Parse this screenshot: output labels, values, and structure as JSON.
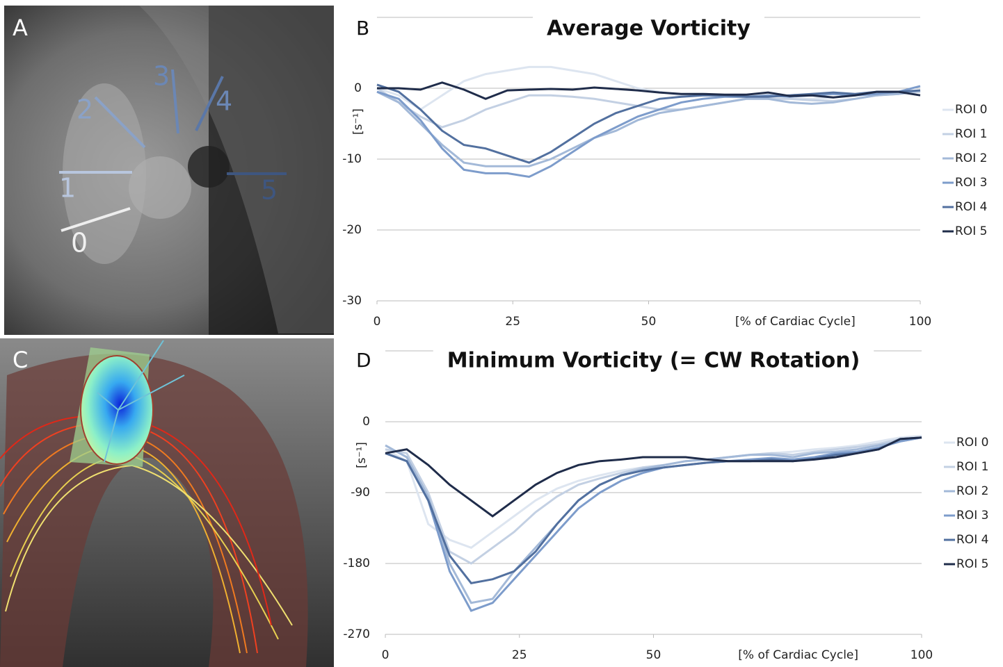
{
  "images": [
    {
      "label": "A",
      "roi_labels": [
        "0",
        "1",
        "2",
        "3",
        "4",
        "5"
      ]
    },
    {
      "label": "C"
    }
  ],
  "chart_data": [
    {
      "type": "line",
      "panel_label": "B",
      "title": "Average Vorticity",
      "y_label": "[s⁻¹]",
      "x_label": "[% of Cardiac Cycle]",
      "x": [
        0,
        4,
        8,
        12,
        16,
        20,
        24,
        28,
        32,
        36,
        40,
        44,
        48,
        52,
        56,
        60,
        64,
        68,
        72,
        76,
        80,
        84,
        88,
        92,
        96,
        100
      ],
      "xlim": [
        0,
        100
      ],
      "xticks": [
        0,
        25,
        50,
        100
      ],
      "ylim": [
        -30,
        10
      ],
      "yticks": [
        -30,
        -20,
        -10,
        0
      ],
      "grid": true,
      "series": [
        {
          "name": "ROI 0",
          "color": "#dde5f0",
          "values": [
            0,
            -1,
            -3,
            -1,
            1,
            2,
            2.5,
            3,
            3,
            2.5,
            2,
            1,
            0,
            -0.5,
            -1,
            -1,
            -1.2,
            -1.3,
            -1.5,
            -1.5,
            -1.5,
            -1.3,
            -1,
            -0.8,
            -0.5,
            -0.5
          ]
        },
        {
          "name": "ROI 1",
          "color": "#c3d0e3",
          "values": [
            0,
            -2,
            -4,
            -5.5,
            -4.5,
            -3,
            -2,
            -1,
            -1,
            -1.2,
            -1.5,
            -2,
            -2.5,
            -3,
            -3,
            -2.5,
            -2,
            -1.5,
            -1.5,
            -1.5,
            -1.7,
            -1.8,
            -1.5,
            -1,
            -0.8,
            -0.5
          ]
        },
        {
          "name": "ROI 2",
          "color": "#a3b9d8",
          "values": [
            -0.5,
            -2,
            -5,
            -8,
            -10.5,
            -11,
            -11,
            -11,
            -10,
            -8.5,
            -7,
            -6,
            -4.5,
            -3.5,
            -3,
            -2.5,
            -2,
            -1.5,
            -1.5,
            -2,
            -2.2,
            -2,
            -1.5,
            -1,
            -0.8,
            -0.3
          ]
        },
        {
          "name": "ROI 3",
          "color": "#7d9ccb",
          "values": [
            -0.5,
            -1.5,
            -4.5,
            -8.5,
            -11.5,
            -12,
            -12,
            -12.5,
            -11,
            -9,
            -7,
            -5.5,
            -4,
            -3,
            -2,
            -1.5,
            -1.2,
            -1.2,
            -1,
            -1.2,
            -1,
            -0.8,
            -1,
            -0.8,
            -0.5,
            0.3
          ]
        },
        {
          "name": "ROI 4",
          "color": "#52709f",
          "values": [
            0.5,
            -0.5,
            -3,
            -6,
            -8,
            -8.5,
            -9.5,
            -10.5,
            -9,
            -7,
            -5,
            -3.5,
            -2.5,
            -1.5,
            -1.2,
            -1,
            -1,
            -1.2,
            -1.2,
            -1,
            -0.8,
            -0.6,
            -0.8,
            -0.5,
            -0.5,
            -0.3
          ]
        },
        {
          "name": "ROI 5",
          "color": "#1f2c4a",
          "values": [
            0,
            0,
            -0.2,
            0.8,
            -0.2,
            -1.5,
            -0.3,
            -0.2,
            -0.1,
            -0.2,
            0.1,
            -0.1,
            -0.3,
            -0.6,
            -0.8,
            -0.8,
            -0.9,
            -0.9,
            -0.6,
            -1.1,
            -1,
            -1.3,
            -1,
            -0.5,
            -0.5,
            -1
          ]
        }
      ]
    },
    {
      "type": "line",
      "panel_label": "D",
      "title": "Minimum Vorticity (= CW Rotation)",
      "y_label": "[s⁻¹]",
      "x_label": "[% of Cardiac Cycle]",
      "x": [
        0,
        4,
        8,
        12,
        16,
        20,
        24,
        28,
        32,
        36,
        40,
        44,
        48,
        52,
        56,
        60,
        64,
        68,
        72,
        76,
        80,
        84,
        88,
        92,
        96,
        100
      ],
      "xlim": [
        0,
        100
      ],
      "xticks": [
        0,
        25,
        50,
        100
      ],
      "ylim": [
        -270,
        90
      ],
      "yticks": [
        -270,
        -180,
        -90,
        0
      ],
      "grid": true,
      "series": [
        {
          "name": "ROI 0",
          "color": "#dde5f0",
          "values": [
            -35,
            -50,
            -130,
            -150,
            -160,
            -140,
            -120,
            -100,
            -85,
            -75,
            -68,
            -62,
            -58,
            -55,
            -50,
            -48,
            -45,
            -42,
            -40,
            -38,
            -35,
            -33,
            -30,
            -25,
            -20,
            -18
          ]
        },
        {
          "name": "ROI 1",
          "color": "#c3d0e3",
          "values": [
            -35,
            -40,
            -90,
            -165,
            -180,
            -160,
            -140,
            -115,
            -95,
            -80,
            -72,
            -65,
            -58,
            -55,
            -50,
            -48,
            -45,
            -42,
            -40,
            -42,
            -38,
            -35,
            -32,
            -28,
            -22,
            -20
          ]
        },
        {
          "name": "ROI 2",
          "color": "#a3b9d8",
          "values": [
            -30,
            -45,
            -95,
            -180,
            -230,
            -225,
            -190,
            -160,
            -130,
            -100,
            -80,
            -68,
            -60,
            -55,
            -50,
            -48,
            -45,
            -42,
            -42,
            -45,
            -40,
            -38,
            -35,
            -30,
            -25,
            -20
          ]
        },
        {
          "name": "ROI 3",
          "color": "#7d9ccb",
          "values": [
            -40,
            -50,
            -100,
            -190,
            -240,
            -230,
            -200,
            -170,
            -140,
            -110,
            -90,
            -75,
            -65,
            -58,
            -55,
            -52,
            -50,
            -48,
            -46,
            -48,
            -45,
            -40,
            -38,
            -33,
            -25,
            -20
          ]
        },
        {
          "name": "ROI 4",
          "color": "#52709f",
          "values": [
            -40,
            -50,
            -100,
            -170,
            -205,
            -200,
            -190,
            -165,
            -130,
            -100,
            -80,
            -68,
            -62,
            -58,
            -55,
            -52,
            -50,
            -50,
            -48,
            -50,
            -47,
            -42,
            -40,
            -35,
            -22,
            -20
          ]
        },
        {
          "name": "ROI 5",
          "color": "#1f2c4a",
          "values": [
            -40,
            -35,
            -55,
            -80,
            -100,
            -120,
            -100,
            -80,
            -65,
            -55,
            -50,
            -48,
            -45,
            -45,
            -45,
            -48,
            -50,
            -50,
            -50,
            -50,
            -48,
            -45,
            -40,
            -35,
            -22,
            -20
          ]
        }
      ]
    }
  ]
}
